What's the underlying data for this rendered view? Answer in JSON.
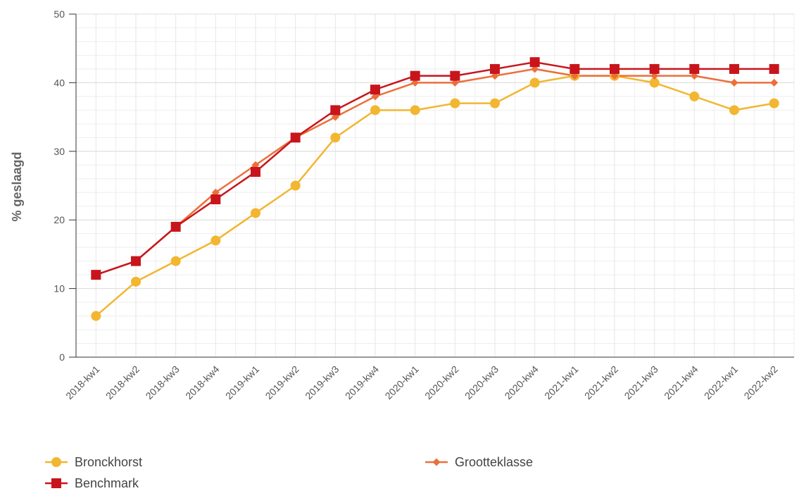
{
  "chart_data": {
    "type": "line",
    "title": "",
    "xlabel": "",
    "ylabel": "% geslaagd",
    "ylim": [
      0,
      50
    ],
    "yticks": [
      0,
      10,
      20,
      30,
      40,
      50
    ],
    "grid": true,
    "legend_position": "bottom",
    "categories": [
      "2018-kw1",
      "2018-kw2",
      "2018-kw3",
      "2018-kw4",
      "2019-kw1",
      "2019-kw2",
      "2019-kw3",
      "2019-kw4",
      "2020-kw1",
      "2020-kw2",
      "2020-kw3",
      "2020-kw4",
      "2021-kw1",
      "2021-kw2",
      "2021-kw3",
      "2021-kw4",
      "2022-kw1",
      "2022-kw2"
    ],
    "series": [
      {
        "name": "Bronckhorst",
        "color": "#f2b630",
        "marker": "circle",
        "values": [
          6,
          11,
          14,
          17,
          21,
          25,
          32,
          36,
          36,
          37,
          37,
          40,
          41,
          41,
          40,
          38,
          36,
          37
        ]
      },
      {
        "name": "Grootteklasse",
        "color": "#ec6f3a",
        "marker": "diamond",
        "values": [
          12,
          14,
          19,
          24,
          28,
          32,
          35,
          38,
          40,
          40,
          41,
          42,
          41,
          41,
          41,
          41,
          40,
          40
        ]
      },
      {
        "name": "Benchmark",
        "color": "#c8151c",
        "marker": "square",
        "values": [
          12,
          14,
          19,
          23,
          27,
          32,
          36,
          39,
          41,
          41,
          42,
          43,
          42,
          42,
          42,
          42,
          42,
          42
        ]
      }
    ]
  }
}
